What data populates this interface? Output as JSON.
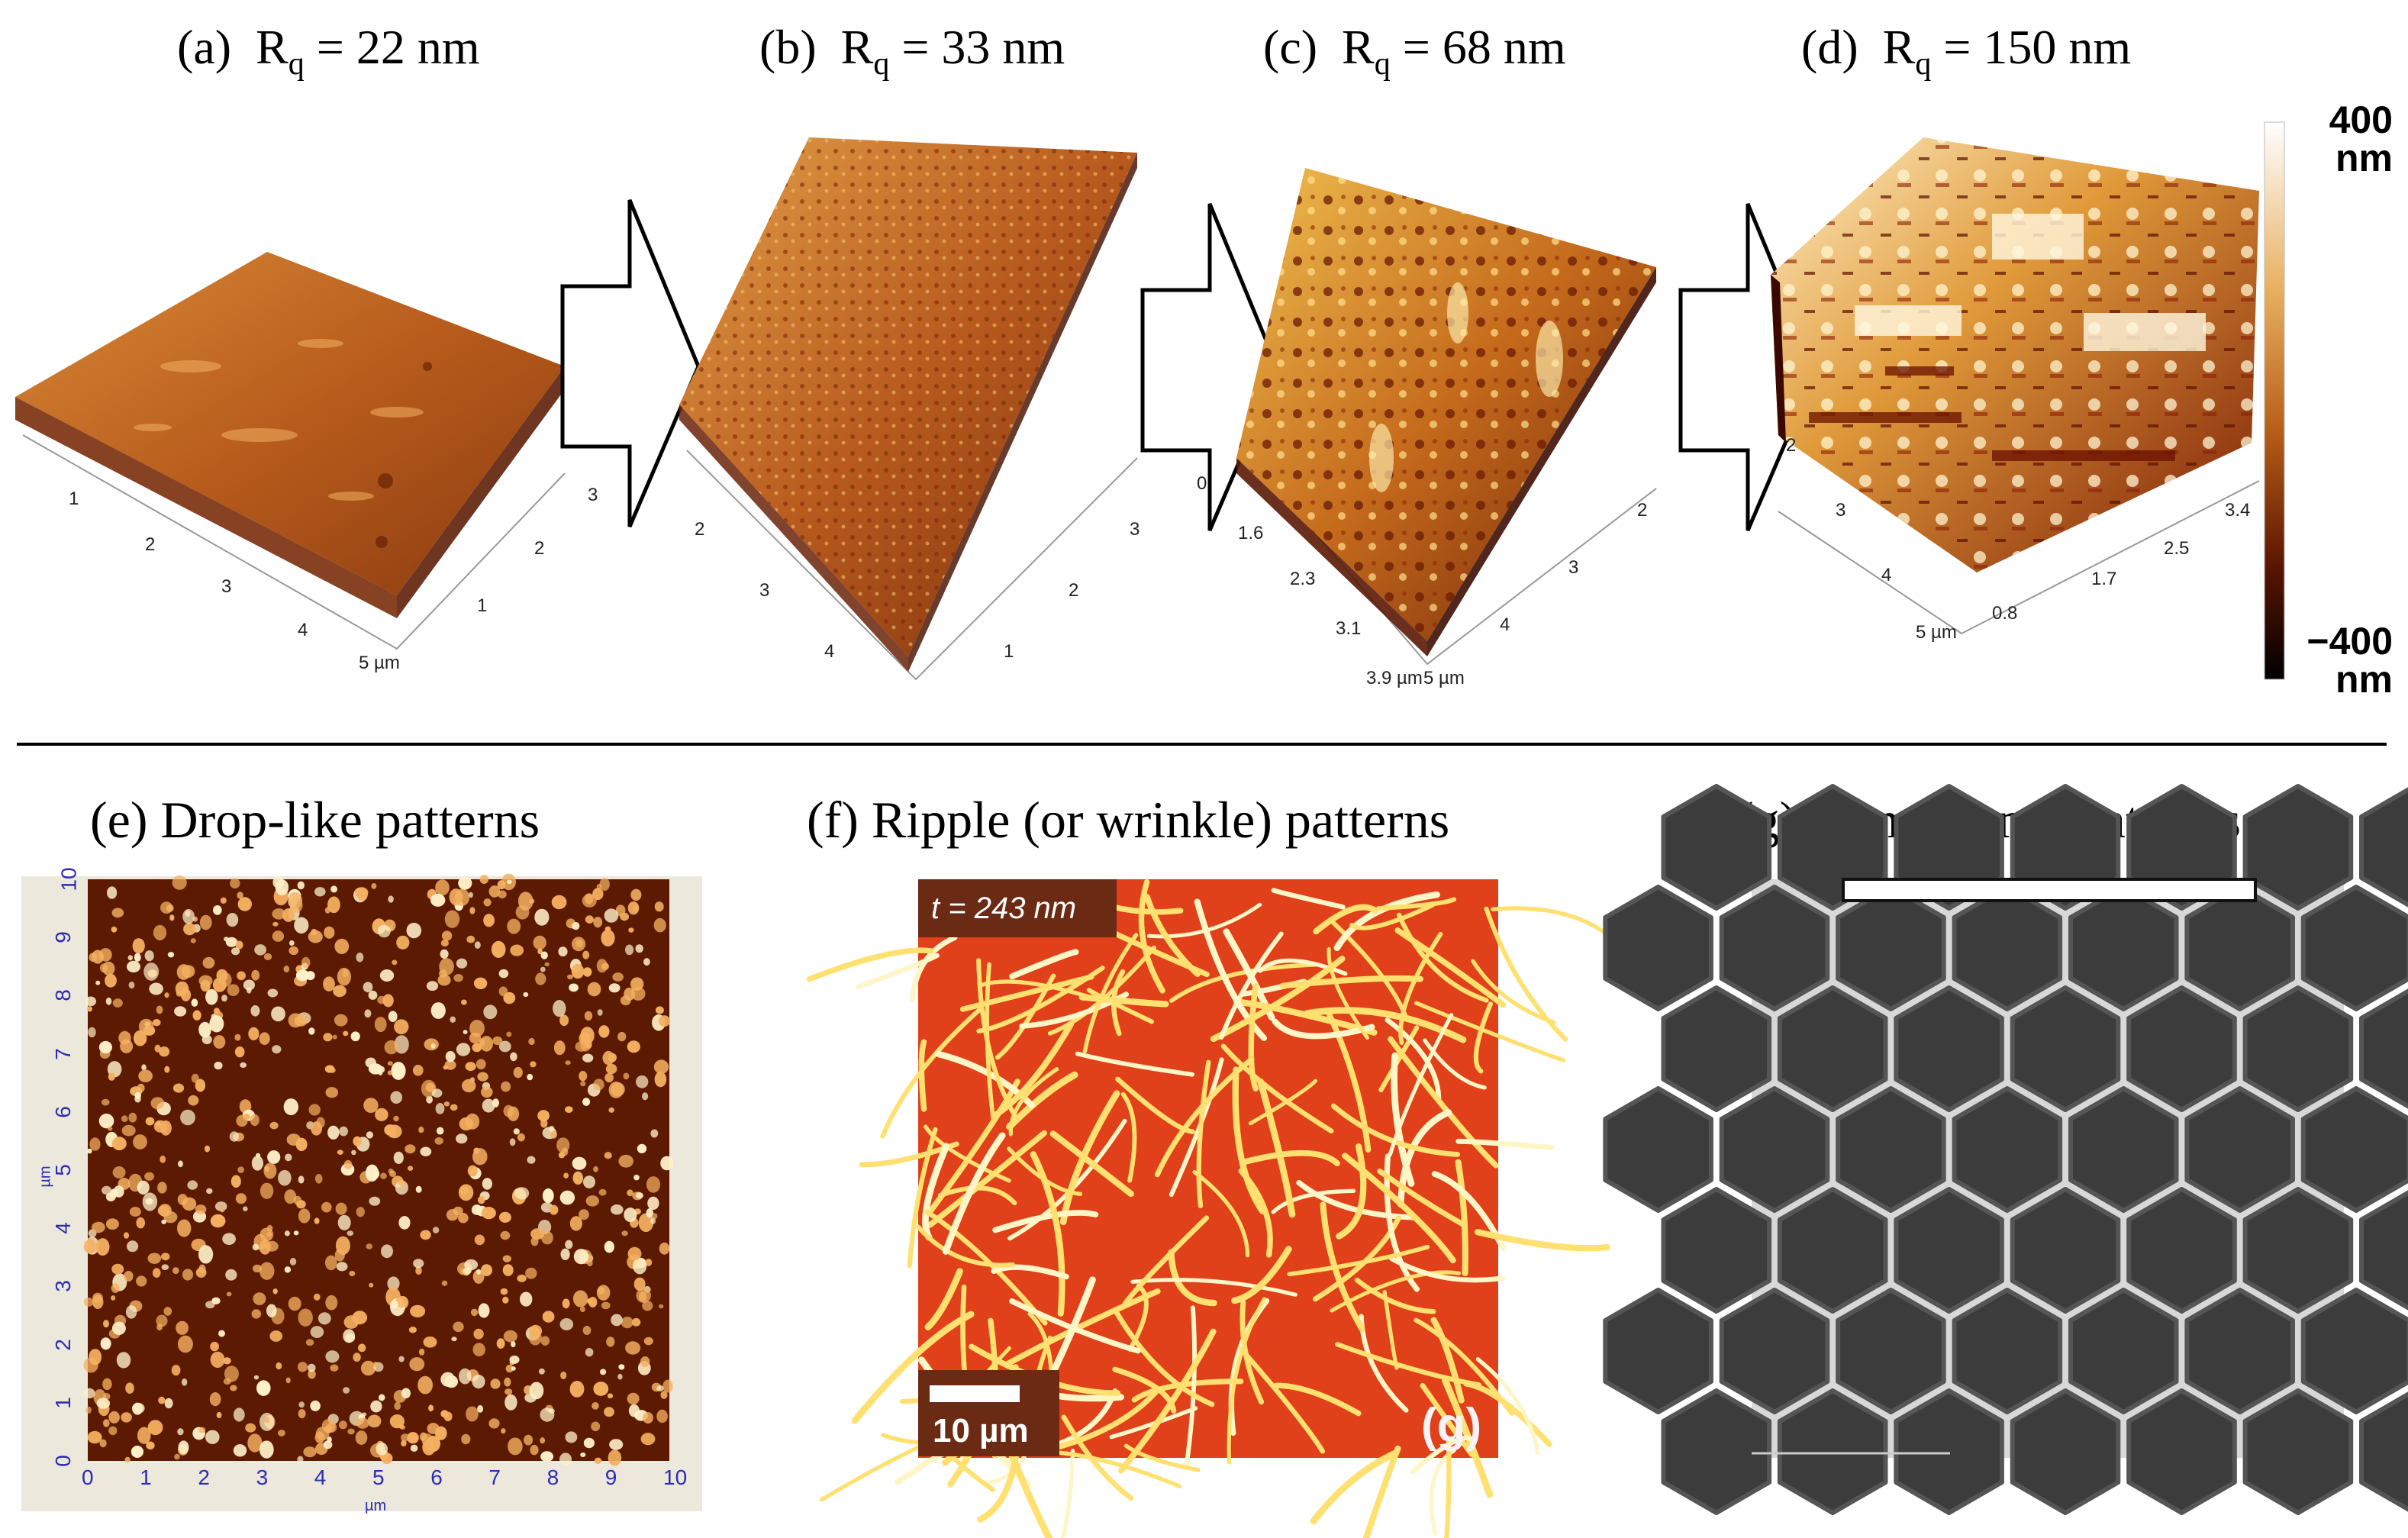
{
  "panels_top": [
    {
      "letter": "(a)",
      "rq_symbol": "R",
      "rq_sub": "q",
      "rq_value": "= 22 nm",
      "axis_ticks_left": [
        "1",
        "2",
        "3",
        "4",
        "5 µm"
      ],
      "axis_ticks_right": [
        "1",
        "2",
        "3"
      ]
    },
    {
      "letter": "(b)",
      "rq_symbol": "R",
      "rq_sub": "q",
      "rq_value": "= 33 nm",
      "axis_ticks_left": [
        "2",
        "3",
        "4"
      ],
      "axis_ticks_right": [
        "1",
        "2",
        "3"
      ]
    },
    {
      "letter": "(c)",
      "rq_symbol": "R",
      "rq_sub": "q",
      "rq_value": "= 68 nm",
      "axis_ticks_left": [
        "0",
        "1.6",
        "2.3",
        "3.1",
        "3.9 µm"
      ],
      "axis_ticks_right": [
        "5 µm",
        "4",
        "3",
        "2"
      ]
    },
    {
      "letter": "(d)",
      "rq_symbol": "R",
      "rq_sub": "q",
      "rq_value": "= 150 nm",
      "axis_ticks_left": [
        "2",
        "3",
        "4",
        "5 µm"
      ],
      "axis_ticks_right": [
        "0.8",
        "1.7",
        "2.5",
        "3.4"
      ]
    }
  ],
  "colorbar": {
    "top_value": "400",
    "top_unit": "nm",
    "bottom_value": "−400",
    "bottom_unit": "nm"
  },
  "panels_bottom": [
    {
      "title": "(e) Drop-like patterns",
      "x_ticks": [
        "0",
        "1",
        "2",
        "3",
        "4",
        "5",
        "6",
        "7",
        "8",
        "9",
        "10"
      ],
      "y_ticks": [
        "0",
        "1",
        "2",
        "3",
        "4",
        "5",
        "6",
        "7",
        "8",
        "9",
        "10"
      ],
      "x_unit": "µm",
      "y_unit": "µm"
    },
    {
      "title": "(f) Ripple (or wrinkle) patterns",
      "thickness_label": "t = 243 nm",
      "scale_label": "10 µm",
      "inset_letter": "(g)"
    },
    {
      "title": "(g) Honeycomb patterns"
    }
  ],
  "colors": {
    "afm_dark": "#5a1800",
    "afm_mid": "#c8641a",
    "afm_light": "#fff2c0",
    "ripple_bg": "#e0401a",
    "ripple_line": "#ffe070",
    "honeycomb_bg": "#3a3a3a",
    "honeycomb_wall": "#f0f0f0"
  }
}
